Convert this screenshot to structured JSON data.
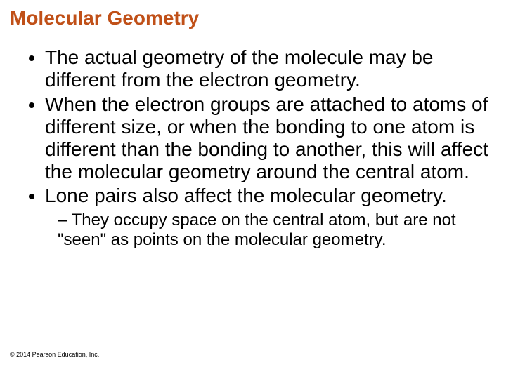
{
  "title": {
    "text": "Molecular Geometry",
    "color": "#c05018",
    "fontsize": 28
  },
  "body": {
    "color": "#000000",
    "fontsize": 28,
    "sub_fontsize": 24
  },
  "bullets": [
    "The actual geometry of the molecule may be different from the electron geometry.",
    "When the electron groups are attached to atoms of different size, or when the bonding to one atom is different than the bonding to another, this will affect the molecular geometry around the central atom.",
    "Lone pairs also affect the molecular geometry."
  ],
  "sub_bullet": "They occupy space on the central atom, but are not \"seen\" as points on the molecular geometry.",
  "copyright": {
    "text": "© 2014 Pearson Education, Inc.",
    "fontsize": 9,
    "color": "#000000"
  }
}
